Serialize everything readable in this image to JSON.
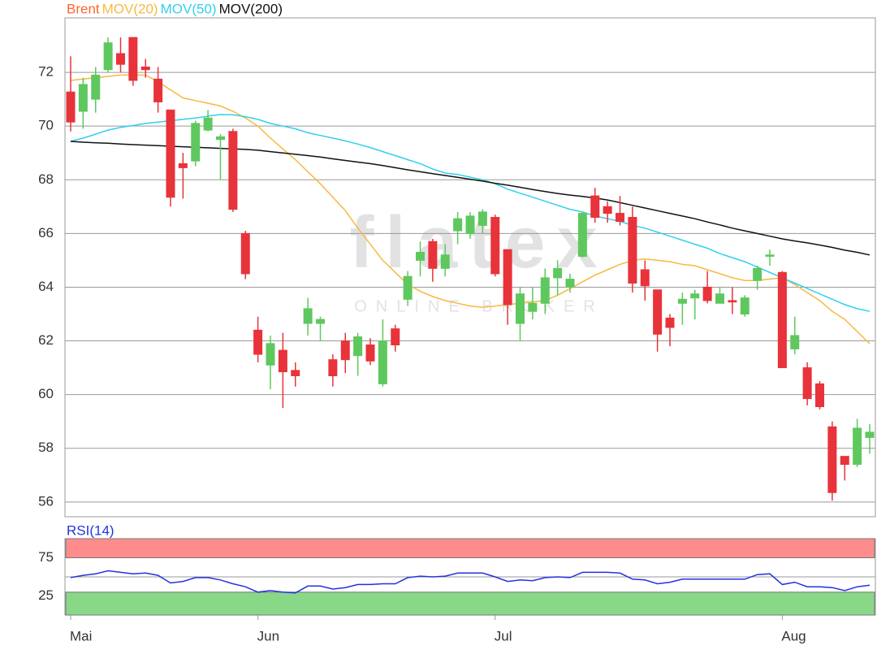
{
  "chart_data": [
    {
      "type": "candlestick",
      "categories": [
        "Mai",
        null,
        null,
        null,
        null,
        null,
        null,
        null,
        null,
        null,
        null,
        null,
        null,
        null,
        null,
        "Jun",
        null,
        null,
        null,
        null,
        null,
        null,
        null,
        null,
        null,
        null,
        null,
        null,
        null,
        null,
        null,
        null,
        null,
        null,
        "Jul",
        null,
        null,
        null,
        null,
        null,
        null,
        null,
        null,
        null,
        null,
        null,
        null,
        null,
        null,
        null,
        null,
        null,
        null,
        null,
        null,
        null,
        null,
        "Aug",
        null,
        null,
        null,
        null,
        null,
        null,
        null
      ],
      "series": [
        {
          "name": "Brent",
          "color": "#ff6633",
          "up_color": "#5ec85e",
          "down_color": "#e8333a",
          "open": [
            71.27,
            70.55,
            71.0,
            72.1,
            72.7,
            73.3,
            72.2,
            71.75,
            70.6,
            68.6,
            68.7,
            69.85,
            69.5,
            69.8,
            66.0,
            62.4,
            61.1,
            61.65,
            60.9,
            62.65,
            62.65,
            61.3,
            62.0,
            61.45,
            61.85,
            60.4,
            62.45,
            63.55,
            65.0,
            65.7,
            64.7,
            66.1,
            66.0,
            66.3,
            66.6,
            65.4,
            62.65,
            63.1,
            63.4,
            64.35,
            64.0,
            65.15,
            67.4,
            67.0,
            66.75,
            66.6,
            64.65,
            63.9,
            62.85,
            63.4,
            63.6,
            64.0,
            63.4,
            63.5,
            63.0,
            64.25,
            65.15,
            64.55,
            61.7,
            61.0,
            60.4,
            58.8,
            57.7,
            57.4,
            58.4
          ],
          "high": [
            72.6,
            71.8,
            72.2,
            73.3,
            73.3,
            73.3,
            72.5,
            72.2,
            70.6,
            69.0,
            70.2,
            70.6,
            69.7,
            69.9,
            66.1,
            62.9,
            62.2,
            62.3,
            61.2,
            63.6,
            62.9,
            61.5,
            62.3,
            62.3,
            62.1,
            62.8,
            62.6,
            64.6,
            65.7,
            65.8,
            65.6,
            66.8,
            66.8,
            66.9,
            66.7,
            65.4,
            64.0,
            64.0,
            64.7,
            65.0,
            64.5,
            66.8,
            67.7,
            67.2,
            67.4,
            67.0,
            65.0,
            63.9,
            63.0,
            63.8,
            63.9,
            64.6,
            64.0,
            64.0,
            63.7,
            64.8,
            65.4,
            64.6,
            62.9,
            61.2,
            60.5,
            59.0,
            57.7,
            59.1,
            58.9
          ],
          "low": [
            69.8,
            69.9,
            70.5,
            72.0,
            72.0,
            71.5,
            71.8,
            70.5,
            67.0,
            67.3,
            68.5,
            69.8,
            68.0,
            66.8,
            64.3,
            61.2,
            60.2,
            59.5,
            60.3,
            62.2,
            62.0,
            60.3,
            60.8,
            60.7,
            61.1,
            60.3,
            61.6,
            63.3,
            64.4,
            64.2,
            64.4,
            65.6,
            65.8,
            66.0,
            64.4,
            62.6,
            62.0,
            62.8,
            63.0,
            63.7,
            63.8,
            65.1,
            66.4,
            66.4,
            66.3,
            63.8,
            63.5,
            61.6,
            61.8,
            62.6,
            62.8,
            63.4,
            63.4,
            63.0,
            62.9,
            63.9,
            64.8,
            61.0,
            61.5,
            59.6,
            59.45,
            56.05,
            56.8,
            57.3,
            57.8
          ],
          "close": [
            70.15,
            71.55,
            71.9,
            73.1,
            72.3,
            71.7,
            72.1,
            70.9,
            67.35,
            68.45,
            70.1,
            70.3,
            69.6,
            66.9,
            64.5,
            61.5,
            61.9,
            60.85,
            60.7,
            63.2,
            62.8,
            60.7,
            61.3,
            62.15,
            61.25,
            62.0,
            61.85,
            64.4,
            65.3,
            64.7,
            65.2,
            66.55,
            66.65,
            66.8,
            64.5,
            63.35,
            63.75,
            63.4,
            64.35,
            64.7,
            64.3,
            66.75,
            66.6,
            66.75,
            66.45,
            64.15,
            64.05,
            62.25,
            62.5,
            63.55,
            63.75,
            63.5,
            63.75,
            63.45,
            63.6,
            64.7,
            65.2,
            61.0,
            62.2,
            59.85,
            59.55,
            56.35,
            57.4,
            58.75,
            58.6
          ]
        },
        {
          "name": "MOV(20)",
          "type": "line",
          "color": "#f8b840",
          "values": [
            71.7,
            71.75,
            71.8,
            71.85,
            71.9,
            71.9,
            71.9,
            71.65,
            71.35,
            71.05,
            70.95,
            70.85,
            70.75,
            70.55,
            70.3,
            70.0,
            69.55,
            69.15,
            68.75,
            68.3,
            67.85,
            67.35,
            66.85,
            66.2,
            65.6,
            65.0,
            64.55,
            64.1,
            63.85,
            63.65,
            63.5,
            63.4,
            63.3,
            63.25,
            63.3,
            63.35,
            63.4,
            63.45,
            63.5,
            63.7,
            63.95,
            64.2,
            64.45,
            64.65,
            64.85,
            65.0,
            65.05,
            65.0,
            64.95,
            64.85,
            64.8,
            64.65,
            64.5,
            64.35,
            64.25,
            64.25,
            64.3,
            64.35,
            64.1,
            63.8,
            63.5,
            63.1,
            62.8,
            62.35,
            61.9
          ]
        },
        {
          "name": "MOV(50)",
          "type": "line",
          "color": "#30d0ee",
          "values": [
            69.43,
            69.55,
            69.7,
            69.85,
            69.95,
            70.02,
            70.1,
            70.15,
            70.2,
            70.25,
            70.3,
            70.37,
            70.43,
            70.42,
            70.35,
            70.25,
            70.1,
            70.0,
            69.9,
            69.75,
            69.65,
            69.55,
            69.45,
            69.33,
            69.2,
            69.05,
            68.9,
            68.75,
            68.6,
            68.4,
            68.25,
            68.2,
            68.1,
            68.0,
            67.85,
            67.65,
            67.5,
            67.35,
            67.2,
            67.05,
            66.9,
            66.8,
            66.65,
            66.55,
            66.45,
            66.3,
            66.2,
            66.05,
            65.9,
            65.75,
            65.6,
            65.45,
            65.25,
            65.1,
            64.95,
            64.75,
            64.55,
            64.35,
            64.15,
            63.95,
            63.75,
            63.55,
            63.35,
            63.2,
            63.1
          ]
        },
        {
          "name": "MOV(200)",
          "type": "line",
          "color": "#111111",
          "values": [
            69.43,
            69.4,
            69.38,
            69.36,
            69.33,
            69.31,
            69.29,
            69.27,
            69.25,
            69.23,
            69.21,
            69.19,
            69.17,
            69.15,
            69.13,
            69.1,
            69.05,
            69.0,
            68.95,
            68.9,
            68.85,
            68.78,
            68.72,
            68.66,
            68.6,
            68.53,
            68.45,
            68.37,
            68.3,
            68.23,
            68.16,
            68.09,
            68.02,
            67.95,
            67.87,
            67.8,
            67.72,
            67.64,
            67.56,
            67.49,
            67.43,
            67.38,
            67.32,
            67.25,
            67.15,
            67.05,
            66.95,
            66.85,
            66.75,
            66.65,
            66.55,
            66.43,
            66.32,
            66.2,
            66.1,
            66.0,
            65.9,
            65.8,
            65.72,
            65.65,
            65.57,
            65.48,
            65.38,
            65.3,
            65.2
          ]
        }
      ],
      "ylim": [
        55.45,
        74.03
      ],
      "yticks": [
        56,
        58,
        60,
        62,
        64,
        66,
        68,
        70,
        72
      ],
      "grid": true,
      "watermark": {
        "logo": "flatex",
        "tagline": "ONLINE BROKER"
      }
    },
    {
      "type": "line",
      "series": [
        {
          "name": "RSI(14)",
          "color": "#2233dd",
          "values": [
            49,
            52,
            54,
            58,
            56,
            54,
            55,
            52,
            42,
            44,
            49,
            49,
            46,
            41,
            37,
            30,
            32,
            30,
            29,
            38,
            38,
            34,
            36,
            40,
            40,
            41,
            41,
            49,
            51,
            50,
            51,
            55,
            55,
            55,
            50,
            44,
            46,
            45,
            49,
            50,
            49,
            56,
            56,
            56,
            55,
            47,
            46,
            41,
            43,
            47,
            47,
            47,
            47,
            47,
            47,
            53,
            54,
            40,
            43,
            37,
            37,
            36,
            32,
            37,
            39
          ]
        }
      ],
      "ylim": [
        0,
        100
      ],
      "yticks": [
        25,
        75
      ],
      "midline": 50,
      "zones": [
        {
          "from": 75,
          "to": 100,
          "color": "#ff8c8c"
        },
        {
          "from": 0,
          "to": 30,
          "color": "#88d888"
        }
      ]
    }
  ]
}
